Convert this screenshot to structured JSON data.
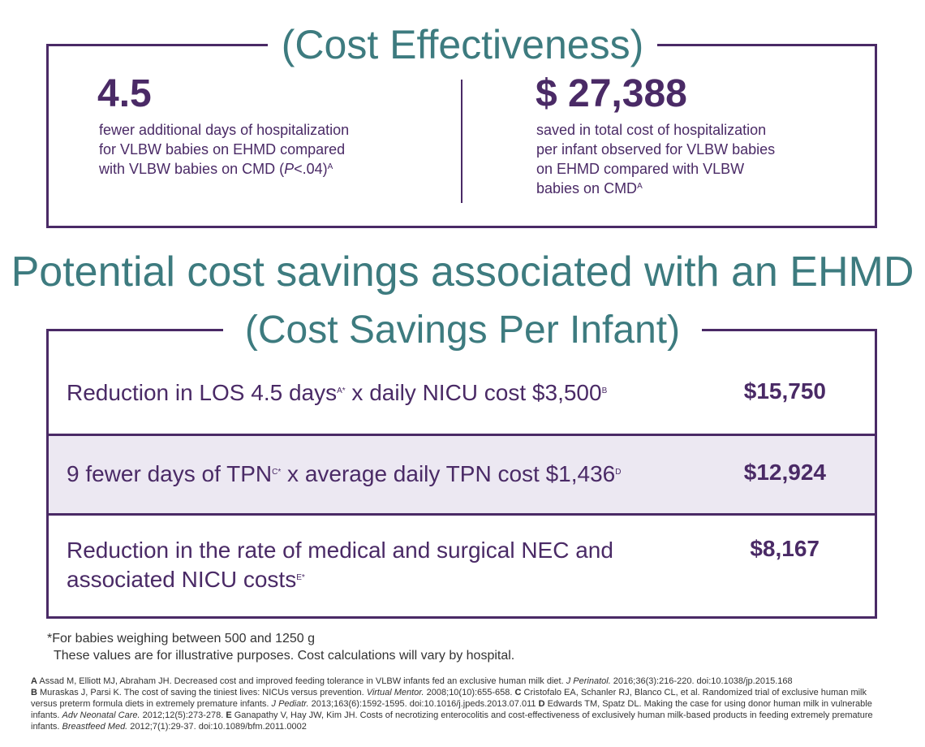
{
  "cost_effectiveness": {
    "title": "(Cost Effectiveness)",
    "left": {
      "value": "4.5",
      "line1": "fewer additional days of hospitalization",
      "line2": "for VLBW babies on EHMD compared",
      "line3_pre": "with VLBW babies on CMD (",
      "line3_italic": "P",
      "line3_post": "<.04)",
      "sup": "A"
    },
    "right": {
      "value": "$ 27,388",
      "line1": "saved in total cost of hospitalization",
      "line2": "per infant observed for VLBW babies",
      "line3": "on EHMD compared with VLBW",
      "line4": "babies on CMD",
      "sup": "A"
    }
  },
  "heading": "Potential cost savings associated with an EHMD",
  "savings": {
    "title": "(Cost Savings Per Infant)",
    "rows": [
      {
        "label_a": "Reduction in LOS 4.5 days",
        "sup_a": "A*",
        "label_b": " x daily NICU cost $3,500",
        "sup_b": "B",
        "value": "$15,750"
      },
      {
        "label_a": "9 fewer days of TPN",
        "sup_a": "C*",
        "label_b": " x average daily TPN cost $1,436",
        "sup_b": "D",
        "value": "$12,924"
      },
      {
        "label_line1": "Reduction in the rate of medical and surgical NEC and",
        "label_line2": "associated NICU costs",
        "sup": "E*",
        "value": "$8,167"
      }
    ]
  },
  "footnotes": {
    "line1": "*For babies weighing between 500 and 1250 g",
    "line2": "These values are for illustrative purposes. Cost calculations will vary by hospital."
  },
  "references": [
    {
      "letter": "A",
      "text": " Assad M, Elliott MJ, Abraham JH. Decreased cost and improved feeding tolerance in VLBW infants fed an exclusive human milk diet. ",
      "journal": "J Perinatol.",
      "rest": " 2016;36(3):216-220. doi:10.1038/jp.2015.168"
    },
    {
      "letter": "B",
      "text": " Muraskas J, Parsi K. The cost of saving the tiniest lives: NICUs versus prevention. ",
      "journal": "Virtual Mentor.",
      "rest": " 2008;10(10):655-658. "
    },
    {
      "letter": "C",
      "text": " Cristofalo EA, Schanler RJ, Blanco CL, et al. Randomized trial of exclusive human milk versus preterm formula diets in extremely premature infants. ",
      "journal": "J Pediatr.",
      "rest": " 2013;163(6):1592-1595. doi:10.1016/j.jpeds.2013.07.011 "
    },
    {
      "letter": "D",
      "text": " Edwards TM, Spatz DL. Making the case for using donor human milk in vulnerable infants. ",
      "journal": "Adv Neonatal Care.",
      "rest": " 2012;12(5):273-278. "
    },
    {
      "letter": "E",
      "text": " Ganapathy V, Hay JW, Kim JH. Costs of necrotizing enterocolitis and cost-effectiveness of exclusively human milk-based products in feeding extremely premature infants. ",
      "journal": "Breastfeed Med.",
      "rest": " 2012;7(1):29-37. doi:10.1089/bfm.2011.0002"
    }
  ]
}
